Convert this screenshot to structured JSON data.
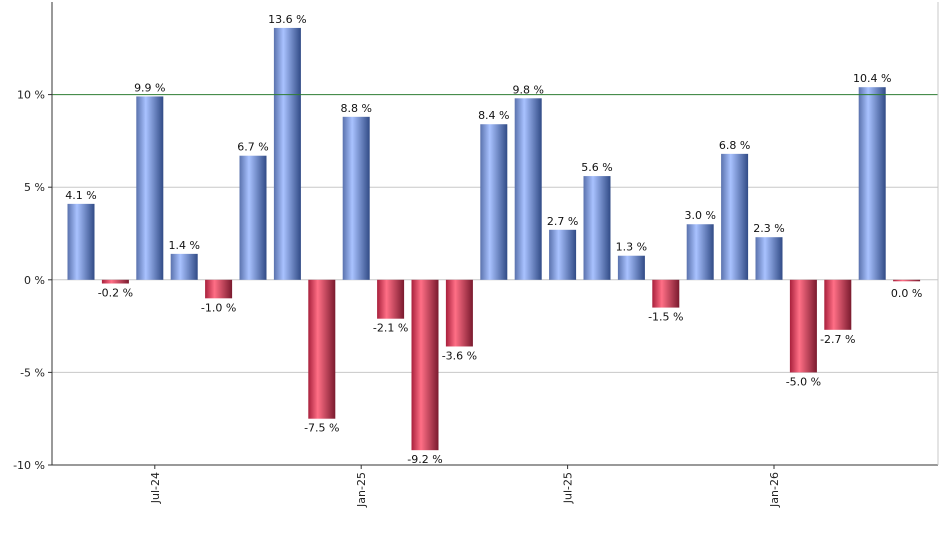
{
  "chart_data": {
    "type": "bar",
    "title": "",
    "xlabel": "",
    "ylabel": "",
    "ylim": [
      -10,
      15
    ],
    "y_ticks": [
      {
        "value": 10,
        "label": "10 %"
      },
      {
        "value": 5,
        "label": "5 %"
      },
      {
        "value": 0,
        "label": "0 %"
      },
      {
        "value": -5,
        "label": "-5 %"
      },
      {
        "value": -10,
        "label": "-10 %"
      }
    ],
    "x_ticks": [
      {
        "index": 2,
        "label": "Jul-24"
      },
      {
        "index": 8,
        "label": "Jan-25"
      },
      {
        "index": 14,
        "label": "Jul-25"
      },
      {
        "index": 20,
        "label": "Jan-26"
      }
    ],
    "reference_line": {
      "value": 10,
      "color": "#2e7d32"
    },
    "grid": true,
    "colors": {
      "positive": "#6f8fd8",
      "negative": "#c8334f"
    },
    "values": [
      4.1,
      -0.2,
      9.9,
      1.4,
      -1.0,
      6.7,
      13.6,
      -7.5,
      8.8,
      -2.1,
      -9.2,
      -3.6,
      8.4,
      9.8,
      2.7,
      5.6,
      1.3,
      -1.5,
      3.0,
      6.8,
      2.3,
      -5.0,
      -2.7,
      10.4,
      0.0
    ],
    "labels": [
      "4.1 %",
      "-0.2 %",
      "9.9 %",
      "1.4 %",
      "-1.0 %",
      "6.7 %",
      "13.6 %",
      "-7.5 %",
      "8.8 %",
      "-2.1 %",
      "-9.2 %",
      "-3.6 %",
      "8.4 %",
      "9.8 %",
      "2.7 %",
      "5.6 %",
      "1.3 %",
      "-1.5 %",
      "3.0 %",
      "6.8 %",
      "2.3 %",
      "-5.0 %",
      "-2.7 %",
      "10.4 %",
      "0.0 %"
    ]
  }
}
